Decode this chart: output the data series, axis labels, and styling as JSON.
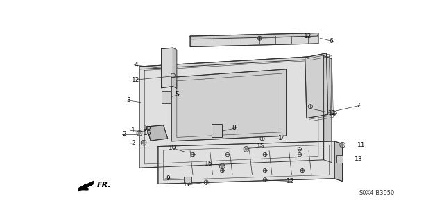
{
  "background_color": "#ffffff",
  "diagram_code": "S0X4-B3950",
  "fr_label": "FR.",
  "line_color": "#333333",
  "fill_light": "#e8e8e8",
  "fill_mid": "#cccccc",
  "fill_dark": "#aaaaaa"
}
